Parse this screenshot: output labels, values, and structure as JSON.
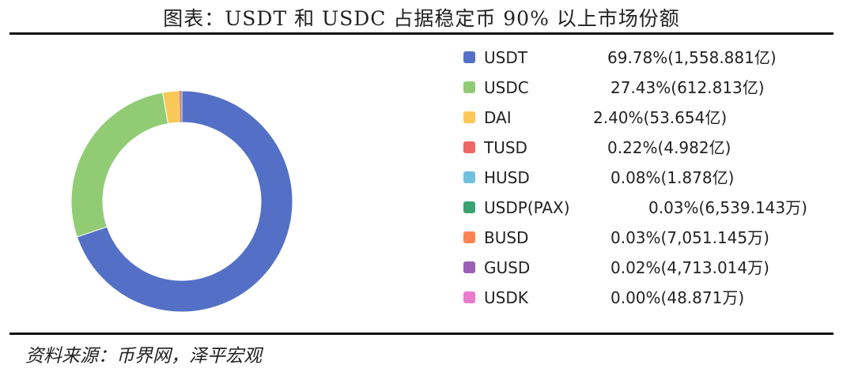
{
  "title": "图表：USDT 和 USDC 占据稳定币 90% 以上市场份额",
  "source": "资料来源：币界网，泽平宏观",
  "chart_data": {
    "type": "pie",
    "variant": "donut",
    "legend_position": "right",
    "slices": [
      {
        "label": "USDT",
        "percent": 69.78,
        "value_text": "69.78%(1,558.881亿)",
        "color": "#5470C6"
      },
      {
        "label": "USDC",
        "percent": 27.43,
        "value_text": "27.43%(612.813亿)",
        "color": "#91CC75"
      },
      {
        "label": "DAI",
        "percent": 2.4,
        "value_text": "2.40%(53.654亿)",
        "color": "#FAC858"
      },
      {
        "label": "TUSD",
        "percent": 0.22,
        "value_text": "0.22%(4.982亿)",
        "color": "#EE6666"
      },
      {
        "label": "HUSD",
        "percent": 0.08,
        "value_text": "0.08%(1.878亿)",
        "color": "#73C0DE"
      },
      {
        "label": "USDP(PAX)",
        "percent": 0.03,
        "value_text": "0.03%(6,539.143万)",
        "color": "#3BA272"
      },
      {
        "label": "BUSD",
        "percent": 0.03,
        "value_text": "0.03%(7,051.145万)",
        "color": "#FC8452"
      },
      {
        "label": "GUSD",
        "percent": 0.02,
        "value_text": "0.02%(4,713.014万)",
        "color": "#9A60B4"
      },
      {
        "label": "USDK",
        "percent": 0.0,
        "value_text": "0.00%(48.871万)",
        "color": "#EA7CCC"
      }
    ]
  }
}
